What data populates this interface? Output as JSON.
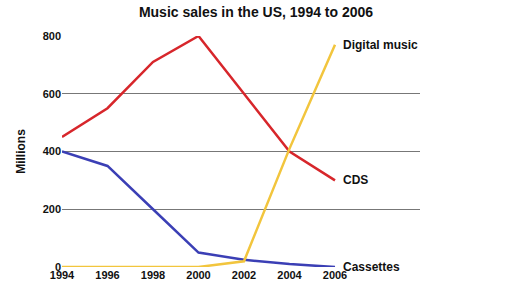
{
  "chart_data": {
    "type": "line",
    "title": "Music sales in the US, 1994 to 2006",
    "y_label": "Millions",
    "categories": [
      "1994",
      "1996",
      "1998",
      "2000",
      "2002",
      "2004",
      "2006"
    ],
    "series": [
      {
        "name": "CDS",
        "color": "#d7262b",
        "values": [
          450,
          550,
          710,
          800,
          600,
          400,
          300
        ]
      },
      {
        "name": "Cassettes",
        "color": "#3b3fb5",
        "values": [
          400,
          350,
          200,
          50,
          25,
          10,
          0
        ]
      },
      {
        "name": "Digital music",
        "color": "#f2c53d",
        "values": [
          0,
          0,
          0,
          0,
          20,
          410,
          770
        ]
      }
    ],
    "ylim": [
      0,
      800
    ],
    "yticks": [
      0,
      200,
      400,
      600,
      800
    ],
    "grid": true
  }
}
